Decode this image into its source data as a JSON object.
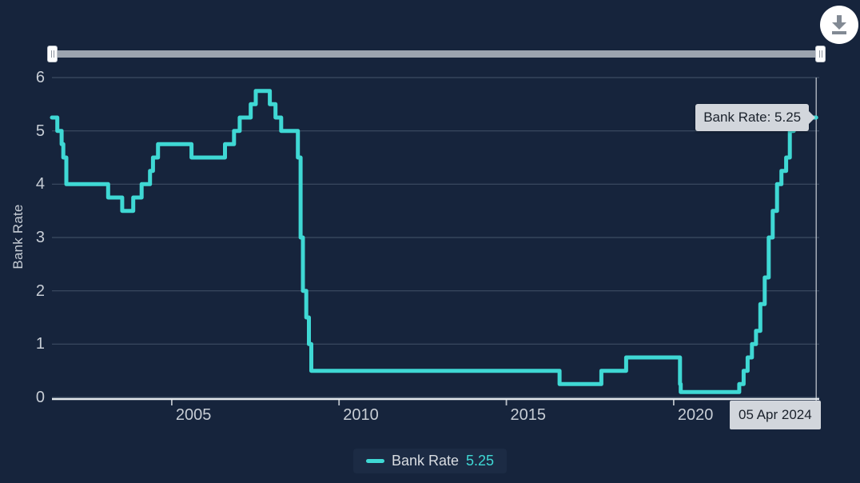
{
  "colors": {
    "background": "#16243C",
    "accent_teal": "#3FD8D4",
    "grid": "#3C4C62",
    "axis": "#E4E8EC",
    "tick_label": "#C7CDD5",
    "tooltip_bg": "#D2D6DC",
    "tooltip_text": "#1A212B",
    "crosshair": "#C9CFD6",
    "slider_track": "#9CA4AF",
    "download_icon": "#828A94"
  },
  "icons": {
    "download": "download-icon",
    "slider_handles": "grip-handle-icon"
  },
  "tooltip": {
    "text": "Bank Rate: 5.25"
  },
  "crosshair": {
    "date_label": "05 Apr 2024"
  },
  "legend": {
    "series_label": "Bank Rate",
    "value": "5.25"
  },
  "chart_data": {
    "type": "line",
    "step": true,
    "title": "",
    "xlabel": "",
    "ylabel": "Bank Rate",
    "ylim": [
      0,
      6
    ],
    "yticks": [
      0,
      1,
      2,
      3,
      4,
      5,
      6
    ],
    "xticks": [
      {
        "label": "2005",
        "year": 2005
      },
      {
        "label": "2010",
        "year": 2010
      },
      {
        "label": "2015",
        "year": 2015
      },
      {
        "label": "2020",
        "year": 2020
      }
    ],
    "x_domain_years": [
      2001.42,
      2024.35
    ],
    "grid": "horizontal-only",
    "legend_position": "bottom-center",
    "series": [
      {
        "name": "Bank Rate",
        "current_value": "5.25",
        "color": "#3FD8D4",
        "points": [
          {
            "x": 2001.42,
            "y": 5.25
          },
          {
            "x": 2001.58,
            "y": 5.0
          },
          {
            "x": 2001.71,
            "y": 4.75
          },
          {
            "x": 2001.76,
            "y": 4.5
          },
          {
            "x": 2001.85,
            "y": 4.0
          },
          {
            "x": 2003.1,
            "y": 3.75
          },
          {
            "x": 2003.52,
            "y": 3.5
          },
          {
            "x": 2003.85,
            "y": 3.75
          },
          {
            "x": 2004.1,
            "y": 4.0
          },
          {
            "x": 2004.35,
            "y": 4.25
          },
          {
            "x": 2004.44,
            "y": 4.5
          },
          {
            "x": 2004.59,
            "y": 4.75
          },
          {
            "x": 2005.59,
            "y": 4.5
          },
          {
            "x": 2006.59,
            "y": 4.75
          },
          {
            "x": 2006.86,
            "y": 5.0
          },
          {
            "x": 2007.03,
            "y": 5.25
          },
          {
            "x": 2007.36,
            "y": 5.5
          },
          {
            "x": 2007.51,
            "y": 5.75
          },
          {
            "x": 2007.93,
            "y": 5.5
          },
          {
            "x": 2008.1,
            "y": 5.25
          },
          {
            "x": 2008.27,
            "y": 5.0
          },
          {
            "x": 2008.77,
            "y": 4.5
          },
          {
            "x": 2008.85,
            "y": 3.0
          },
          {
            "x": 2008.92,
            "y": 2.0
          },
          {
            "x": 2009.02,
            "y": 1.5
          },
          {
            "x": 2009.1,
            "y": 1.0
          },
          {
            "x": 2009.17,
            "y": 0.5
          },
          {
            "x": 2016.59,
            "y": 0.25
          },
          {
            "x": 2017.84,
            "y": 0.5
          },
          {
            "x": 2018.58,
            "y": 0.75
          },
          {
            "x": 2020.19,
            "y": 0.25
          },
          {
            "x": 2020.21,
            "y": 0.1
          },
          {
            "x": 2021.96,
            "y": 0.25
          },
          {
            "x": 2022.09,
            "y": 0.5
          },
          {
            "x": 2022.21,
            "y": 0.75
          },
          {
            "x": 2022.34,
            "y": 1.0
          },
          {
            "x": 2022.46,
            "y": 1.25
          },
          {
            "x": 2022.59,
            "y": 1.75
          },
          {
            "x": 2022.72,
            "y": 2.25
          },
          {
            "x": 2022.84,
            "y": 3.0
          },
          {
            "x": 2022.96,
            "y": 3.5
          },
          {
            "x": 2023.09,
            "y": 4.0
          },
          {
            "x": 2023.22,
            "y": 4.25
          },
          {
            "x": 2023.36,
            "y": 4.5
          },
          {
            "x": 2023.47,
            "y": 5.0
          },
          {
            "x": 2023.59,
            "y": 5.25
          }
        ]
      }
    ],
    "end_point": {
      "x": 2024.26,
      "y": 5.25,
      "date_label": "05 Apr 2024"
    }
  }
}
